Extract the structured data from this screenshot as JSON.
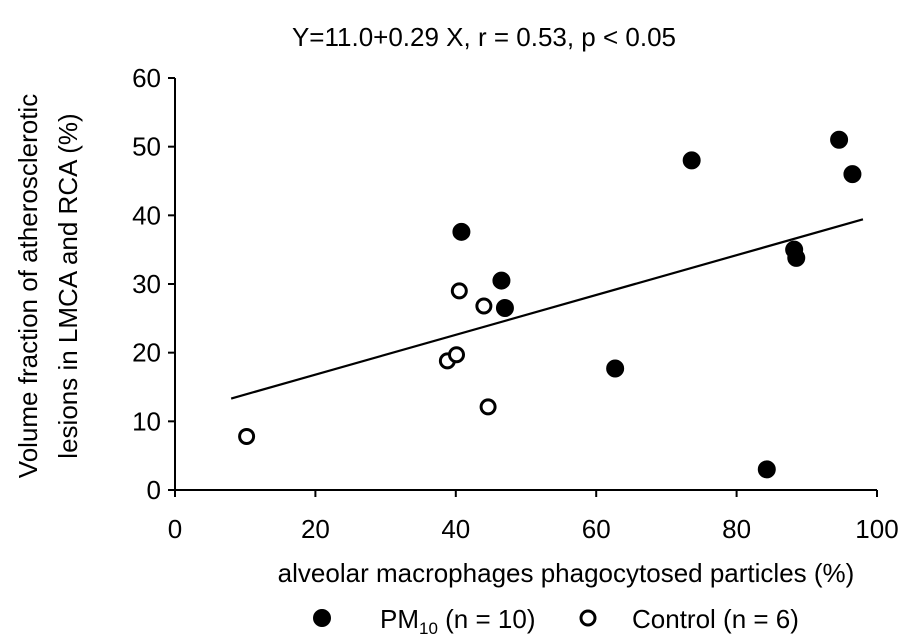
{
  "chart_data": {
    "type": "scatter",
    "title": "Y=11.0+0.29 X, r = 0.53, p < 0.05",
    "xlabel": "alveolar macrophages phagocytosed particles (%)",
    "ylabel_lines": [
      "Volume fraction of atherosclerotic",
      "lesions in LMCA and RCA (%)"
    ],
    "xlim": [
      0,
      100
    ],
    "ylim": [
      0,
      60
    ],
    "x_ticks": [
      "0",
      "20",
      "40",
      "60",
      "80",
      "100"
    ],
    "y_ticks": [
      "0",
      "10",
      "20",
      "30",
      "40",
      "50",
      "60"
    ],
    "grid": false,
    "legend_position": "bottom",
    "series": [
      {
        "name": "PM10 (n = 10)",
        "legend_main": "PM",
        "legend_sub": "10",
        "legend_rest": " (n = 10)",
        "marker": "filled-circle",
        "color": "#000000",
        "points": [
          [
            40.8,
            37.6
          ],
          [
            46.5,
            30.5
          ],
          [
            47.0,
            26.5
          ],
          [
            62.7,
            17.7
          ],
          [
            73.6,
            48.0
          ],
          [
            84.3,
            3.0
          ],
          [
            88.2,
            35.0
          ],
          [
            88.5,
            33.8
          ],
          [
            94.6,
            51.0
          ],
          [
            96.5,
            46.0
          ]
        ]
      },
      {
        "name": "Control (n = 6)",
        "legend_main": "Control (n = 6)",
        "marker": "open-circle",
        "color": "#000000",
        "points": [
          [
            10.2,
            7.8
          ],
          [
            38.8,
            18.8
          ],
          [
            40.1,
            19.7
          ],
          [
            40.5,
            29.0
          ],
          [
            44.0,
            26.8
          ],
          [
            44.6,
            12.1
          ]
        ]
      }
    ],
    "regression": {
      "intercept": 11.0,
      "slope": 0.29,
      "x_range": [
        8,
        98
      ]
    }
  }
}
